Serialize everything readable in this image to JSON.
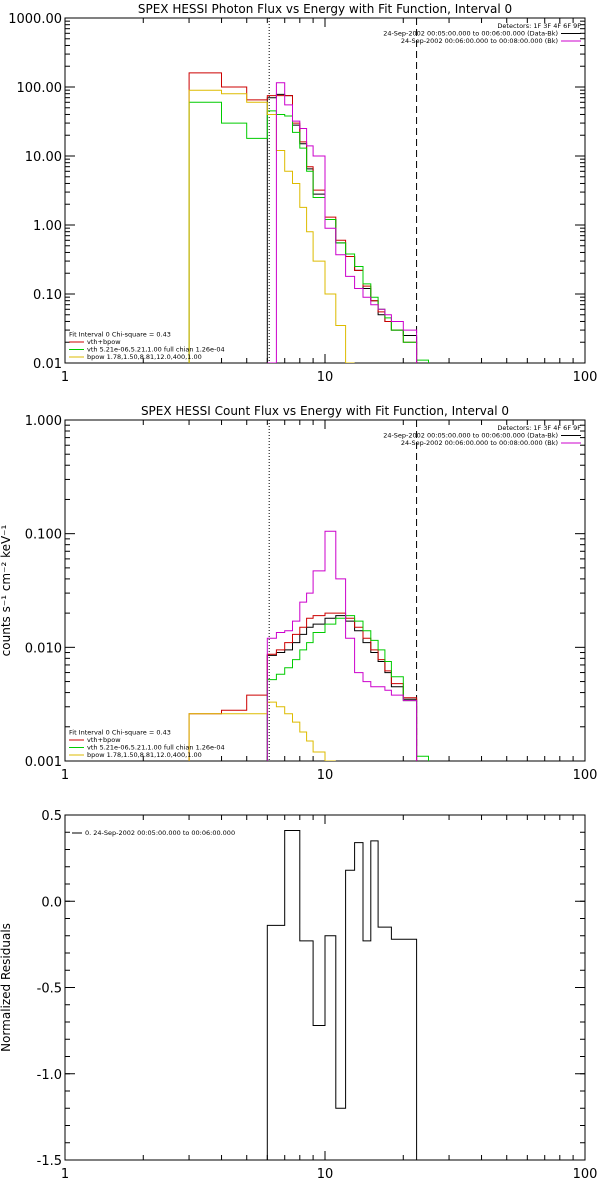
{
  "colors": {
    "data": "#000000",
    "model": "#cc0000",
    "vth": "#00cc00",
    "bpow": "#ddbb00",
    "background": "#cc00cc"
  },
  "chart_data": [
    {
      "type": "line",
      "title": "SPEX HESSI Photon Flux vs Energy with Fit Function, Interval 0",
      "ylabel": "",
      "xscale": "log",
      "yscale": "log",
      "xlim": [
        1,
        100
      ],
      "ylim": [
        0.01,
        1000
      ],
      "xticks": [
        "1",
        "10",
        "100"
      ],
      "xtick_values": [
        1,
        10,
        100
      ],
      "yticks": [
        "0.01",
        "0.10",
        "1.00",
        "10.00",
        "100.00",
        "1000.00"
      ],
      "ytick_values": [
        0.01,
        0.1,
        1,
        10,
        100,
        1000
      ],
      "vlines": [
        {
          "x": 6.1,
          "style": "dotted"
        },
        {
          "x": 22.5,
          "style": "dashed"
        }
      ],
      "legend_top_right": [
        {
          "text": "Detectors: 1F 3F 4F 6F 9F",
          "color": ""
        },
        {
          "text": "24-Sep-2002 00:05:00.000 to 00:06:00.000 (Data-Bk)",
          "color": "data"
        },
        {
          "text": "24-Sep-2002 00:06:00.000 to 00:08:00.000 (Bk)",
          "color": "background"
        }
      ],
      "legend_bottom_left": [
        {
          "text": "Fit Interval 0   Chi-square = 0.43",
          "color": ""
        },
        {
          "text": "vth+bpow",
          "color": "model"
        },
        {
          "text": "vth 5.21e-06,5.21,1.00  full chian 1.26e-04",
          "color": "vth"
        },
        {
          "text": "bpow 1.78,1.50,8.81,12.0,400,1.00",
          "color": "bpow"
        }
      ],
      "edges": [
        3,
        4,
        5,
        6,
        6.5,
        7,
        7.5,
        8,
        8.5,
        9,
        10,
        11,
        12,
        13,
        14,
        15,
        16,
        17,
        18,
        20,
        22.5,
        25
      ],
      "series": [
        {
          "name": "",
          "color": "data",
          "values": [
            null,
            null,
            null,
            70,
            78,
            75,
            28,
            15,
            6.5,
            2.8,
            1.2,
            0.55,
            0.35,
            0.22,
            0.12,
            0.08,
            0.05,
            0.04,
            0.03,
            0.025,
            null
          ]
        },
        {
          "name": "",
          "color": "model",
          "values": [
            160,
            100,
            65,
            75,
            75,
            75,
            30,
            16,
            7,
            3.2,
            1.3,
            0.6,
            0.35,
            0.22,
            0.13,
            0.08,
            0.055,
            0.04,
            0.03,
            0.02,
            null
          ]
        },
        {
          "name": "",
          "color": "vth",
          "values": [
            60,
            30,
            18,
            45,
            40,
            38,
            22,
            13,
            6,
            2.5,
            1.2,
            0.55,
            0.38,
            0.25,
            0.14,
            0.09,
            0.06,
            0.045,
            0.03,
            0.02,
            0.011
          ]
        },
        {
          "name": "",
          "color": "bpow",
          "values": [
            90,
            80,
            60,
            40,
            12,
            6,
            4,
            1.8,
            0.8,
            0.3,
            0.1,
            0.035,
            0.01,
            null,
            null,
            null,
            null,
            null,
            null,
            null,
            null
          ]
        },
        {
          "name": "",
          "color": "background",
          "values": [
            null,
            null,
            null,
            0.01,
            115,
            55,
            32,
            25,
            14,
            10,
            0.9,
            0.37,
            0.18,
            0.12,
            0.09,
            0.07,
            0.06,
            0.05,
            0.04,
            0.03,
            null
          ]
        }
      ]
    },
    {
      "type": "line",
      "title": "SPEX HESSI Count Flux vs Energy with Fit Function, Interval 0",
      "ylabel": "counts s⁻¹ cm⁻² keV⁻¹",
      "xscale": "log",
      "yscale": "log",
      "xlim": [
        1,
        100
      ],
      "ylim": [
        0.001,
        1
      ],
      "xticks": [
        "1",
        "10",
        "100"
      ],
      "xtick_values": [
        1,
        10,
        100
      ],
      "yticks": [
        "0.001",
        "0.010",
        "0.100",
        "1.000"
      ],
      "ytick_values": [
        0.001,
        0.01,
        0.1,
        1
      ],
      "vlines": [
        {
          "x": 6.1,
          "style": "dotted"
        },
        {
          "x": 22.5,
          "style": "dashed"
        }
      ],
      "legend_top_right": [
        {
          "text": "Detectors: 1F 3F 4F 6F 9F",
          "color": ""
        },
        {
          "text": "24-Sep-2002 00:05:00.000 to 00:06:00.000 (Data-Bk)",
          "color": "data"
        },
        {
          "text": "24-Sep-2002 00:06:00.000 to 00:08:00.000 (Bk)",
          "color": "background"
        }
      ],
      "legend_bottom_left": [
        {
          "text": "Fit Interval 0   Chi-square = 0.43",
          "color": ""
        },
        {
          "text": "vth+bpow",
          "color": "model"
        },
        {
          "text": "vth 5.21e-06,5.21,1.00  full chian 1.26e-04",
          "color": "vth"
        },
        {
          "text": "bpow 1.78,1.50,8.81,12.0,400,1.00",
          "color": "bpow"
        }
      ],
      "edges": [
        3,
        4,
        5,
        6,
        6.5,
        7,
        7.5,
        8,
        8.5,
        9,
        10,
        11,
        12,
        13,
        14,
        15,
        16,
        17,
        18,
        20,
        22.5,
        25
      ],
      "series": [
        {
          "name": "",
          "color": "data",
          "values": [
            null,
            null,
            null,
            0.0085,
            0.009,
            0.0095,
            0.011,
            0.013,
            0.015,
            0.016,
            0.018,
            0.019,
            0.017,
            0.014,
            0.011,
            0.009,
            0.0075,
            0.006,
            0.0045,
            0.0035,
            null
          ]
        },
        {
          "name": "",
          "color": "model",
          "values": [
            0.0026,
            0.0028,
            0.0038,
            0.0087,
            0.0095,
            0.011,
            0.013,
            0.015,
            0.018,
            0.019,
            0.02,
            0.02,
            0.018,
            0.015,
            0.012,
            0.0095,
            0.0078,
            0.0062,
            0.0048,
            0.0036,
            null
          ]
        },
        {
          "name": "",
          "color": "vth",
          "values": [
            null,
            null,
            null,
            0.0052,
            0.0058,
            0.0066,
            0.0078,
            0.0095,
            0.011,
            0.0135,
            0.016,
            0.018,
            0.019,
            0.017,
            0.014,
            0.0115,
            0.0095,
            0.0075,
            0.0055,
            0.0034,
            0.0011
          ]
        },
        {
          "name": "",
          "color": "bpow",
          "values": [
            0.0026,
            0.0026,
            0.0026,
            0.0033,
            0.003,
            0.0026,
            0.0022,
            0.0018,
            0.0015,
            0.0012,
            0.001,
            null,
            null,
            null,
            null,
            null,
            null,
            null,
            null,
            null,
            null
          ]
        },
        {
          "name": "",
          "color": "background",
          "values": [
            null,
            null,
            null,
            0.012,
            0.0135,
            0.014,
            0.017,
            0.025,
            0.03,
            0.047,
            0.105,
            0.04,
            0.012,
            0.006,
            0.005,
            0.0045,
            0.0045,
            0.0042,
            0.0038,
            0.0034,
            null
          ]
        }
      ]
    },
    {
      "type": "line",
      "title": "",
      "ylabel": "Normalized Residuals",
      "xscale": "log",
      "yscale": "linear",
      "xlim": [
        1,
        100
      ],
      "ylim": [
        -1.5,
        0.5
      ],
      "xticks": [
        "1",
        "10",
        "100"
      ],
      "xtick_values": [
        1,
        10,
        100
      ],
      "yticks": [
        "-1.5",
        "-1.0",
        "-0.5",
        "0.0",
        "0.5"
      ],
      "ytick_values": [
        -1.5,
        -1.0,
        -0.5,
        0.0,
        0.5
      ],
      "legend_top_left": [
        {
          "text": "0. 24-Sep-2002 00:05:00.000 to 00:06:00.000",
          "color": "data"
        }
      ],
      "edges": [
        6,
        7,
        7.5,
        8,
        8.5,
        9,
        10,
        11,
        12,
        13,
        14,
        15,
        16,
        17,
        18,
        20,
        22.5
      ],
      "series": [
        {
          "name": "",
          "color": "data",
          "values": [
            -0.14,
            0.41,
            0.41,
            -0.23,
            -0.23,
            -0.72,
            -0.2,
            -1.2,
            0.18,
            0.34,
            -0.23,
            0.35,
            -0.15,
            -0.15,
            -0.22,
            -0.22
          ]
        }
      ]
    }
  ]
}
